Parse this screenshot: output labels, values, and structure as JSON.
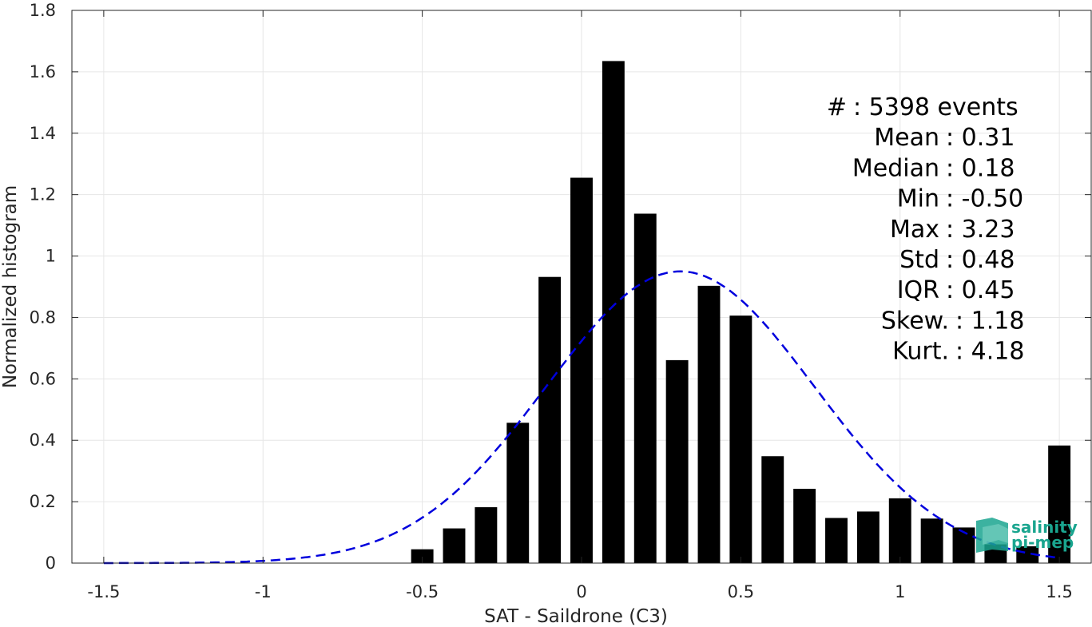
{
  "chart_data": {
    "type": "bar",
    "xlabel": "SAT - Saildrone (C3)",
    "ylabel": "Normalized histogram",
    "xlim": [
      -1.6,
      1.6
    ],
    "ylim": [
      0,
      1.8
    ],
    "xticks": [
      -1.5,
      -1,
      -0.5,
      0,
      0.5,
      1,
      1.5
    ],
    "xtick_labels": [
      "-1.5",
      "-1",
      "-0.5",
      "0",
      "0.5",
      "1",
      "1.5"
    ],
    "yticks": [
      0,
      0.2,
      0.4,
      0.6,
      0.8,
      1,
      1.2,
      1.4,
      1.6,
      1.8
    ],
    "ytick_labels": [
      "0",
      "0.2",
      "0.4",
      "0.6",
      "0.8",
      "1",
      "1.2",
      "1.4",
      "1.6",
      "1.8"
    ],
    "grid": true,
    "bar_width": 0.07,
    "bar_color": "#000000",
    "bars": {
      "x": [
        -0.5,
        -0.4,
        -0.3,
        -0.2,
        -0.1,
        0.0,
        0.1,
        0.2,
        0.3,
        0.4,
        0.5,
        0.6,
        0.7,
        0.8,
        0.9,
        1.0,
        1.1,
        1.2,
        1.3,
        1.4,
        1.5
      ],
      "values": [
        0.045,
        0.113,
        0.182,
        0.457,
        0.932,
        1.255,
        1.635,
        1.138,
        0.661,
        0.903,
        0.806,
        0.348,
        0.242,
        0.147,
        0.168,
        0.211,
        0.145,
        0.116,
        0.061,
        0.055,
        0.383
      ]
    },
    "fit_curve": {
      "type": "normal",
      "mean": 0.31,
      "std": 0.42,
      "peak": 0.95,
      "x_range": [
        -1.5,
        1.5
      ],
      "color": "#0000dd",
      "style": "dashed"
    },
    "stats": [
      {
        "label": "#  ",
        "value": "5398 events"
      },
      {
        "label": "Mean",
        "value": "0.31"
      },
      {
        "label": "Median",
        "value": "0.18"
      },
      {
        "label": "Min",
        "value": "-0.50"
      },
      {
        "label": "Max",
        "value": "3.23"
      },
      {
        "label": "Std",
        "value": "0.48"
      },
      {
        "label": "IQR",
        "value": "0.45"
      },
      {
        "label": "Skew.",
        "value": "1.18"
      },
      {
        "label": "Kurt.",
        "value": "4.18"
      }
    ]
  },
  "logo": {
    "line1": "salinity",
    "line2": "pi-mep",
    "color": "#1aa58f"
  }
}
